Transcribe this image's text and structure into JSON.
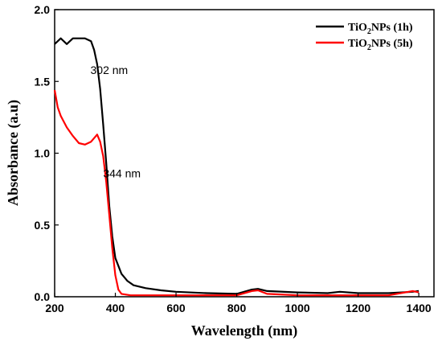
{
  "chart_data": {
    "type": "line",
    "xlabel": "Wavelength (nm)",
    "ylabel": "Absorbance (a.u)",
    "xlim": [
      200,
      1450
    ],
    "ylim": [
      0,
      2.0
    ],
    "xticks": [
      200,
      400,
      600,
      800,
      1000,
      1200,
      1400
    ],
    "xtick_labels": [
      "200",
      "400",
      "600",
      "800",
      "1000",
      "1200",
      "1400"
    ],
    "yticks": [
      0,
      0.5,
      1.0,
      1.5,
      2.0
    ],
    "ytick_labels": [
      "0.0",
      "0.5",
      "1.0",
      "1.5",
      "2.0"
    ],
    "grid": false,
    "legend_position": "top-right",
    "legend": {
      "entries": [
        {
          "pre": "TiO",
          "sub": "2",
          "post": "NPs (1h)",
          "color": "#000000"
        },
        {
          "pre": "TiO",
          "sub": "2",
          "post": "NPs (5h)",
          "color": "#ff0000"
        }
      ]
    },
    "annotations": [
      {
        "text": "302 nm",
        "x": 302,
        "y": 1.62
      },
      {
        "text": "344 nm",
        "x": 344,
        "y": 0.9
      }
    ],
    "series": [
      {
        "name": "TiO2NPs (1h)",
        "color": "#000000",
        "x": [
          200,
          220,
          240,
          260,
          280,
          300,
          320,
          330,
          340,
          350,
          360,
          370,
          380,
          390,
          400,
          420,
          440,
          460,
          500,
          550,
          600,
          700,
          800,
          850,
          870,
          900,
          1000,
          1100,
          1140,
          1200,
          1300,
          1380,
          1400
        ],
        "y": [
          1.76,
          1.8,
          1.76,
          1.8,
          1.8,
          1.8,
          1.78,
          1.72,
          1.62,
          1.45,
          1.2,
          0.93,
          0.63,
          0.42,
          0.27,
          0.16,
          0.11,
          0.08,
          0.06,
          0.045,
          0.035,
          0.025,
          0.02,
          0.05,
          0.055,
          0.04,
          0.03,
          0.025,
          0.035,
          0.025,
          0.025,
          0.035,
          0.04
        ]
      },
      {
        "name": "TiO2NPs (5h)",
        "color": "#ff0000",
        "x": [
          200,
          210,
          220,
          240,
          260,
          280,
          300,
          320,
          340,
          350,
          360,
          370,
          380,
          390,
          400,
          410,
          420,
          450,
          500,
          600,
          700,
          800,
          850,
          870,
          900,
          1000,
          1100,
          1200,
          1300,
          1380,
          1400
        ],
        "y": [
          1.44,
          1.32,
          1.26,
          1.18,
          1.12,
          1.07,
          1.06,
          1.08,
          1.13,
          1.08,
          0.98,
          0.8,
          0.57,
          0.34,
          0.15,
          0.05,
          0.02,
          0.01,
          0.01,
          0.01,
          0.01,
          0.01,
          0.04,
          0.045,
          0.02,
          0.01,
          0.01,
          0.01,
          0.01,
          0.04,
          0.03
        ]
      }
    ]
  }
}
